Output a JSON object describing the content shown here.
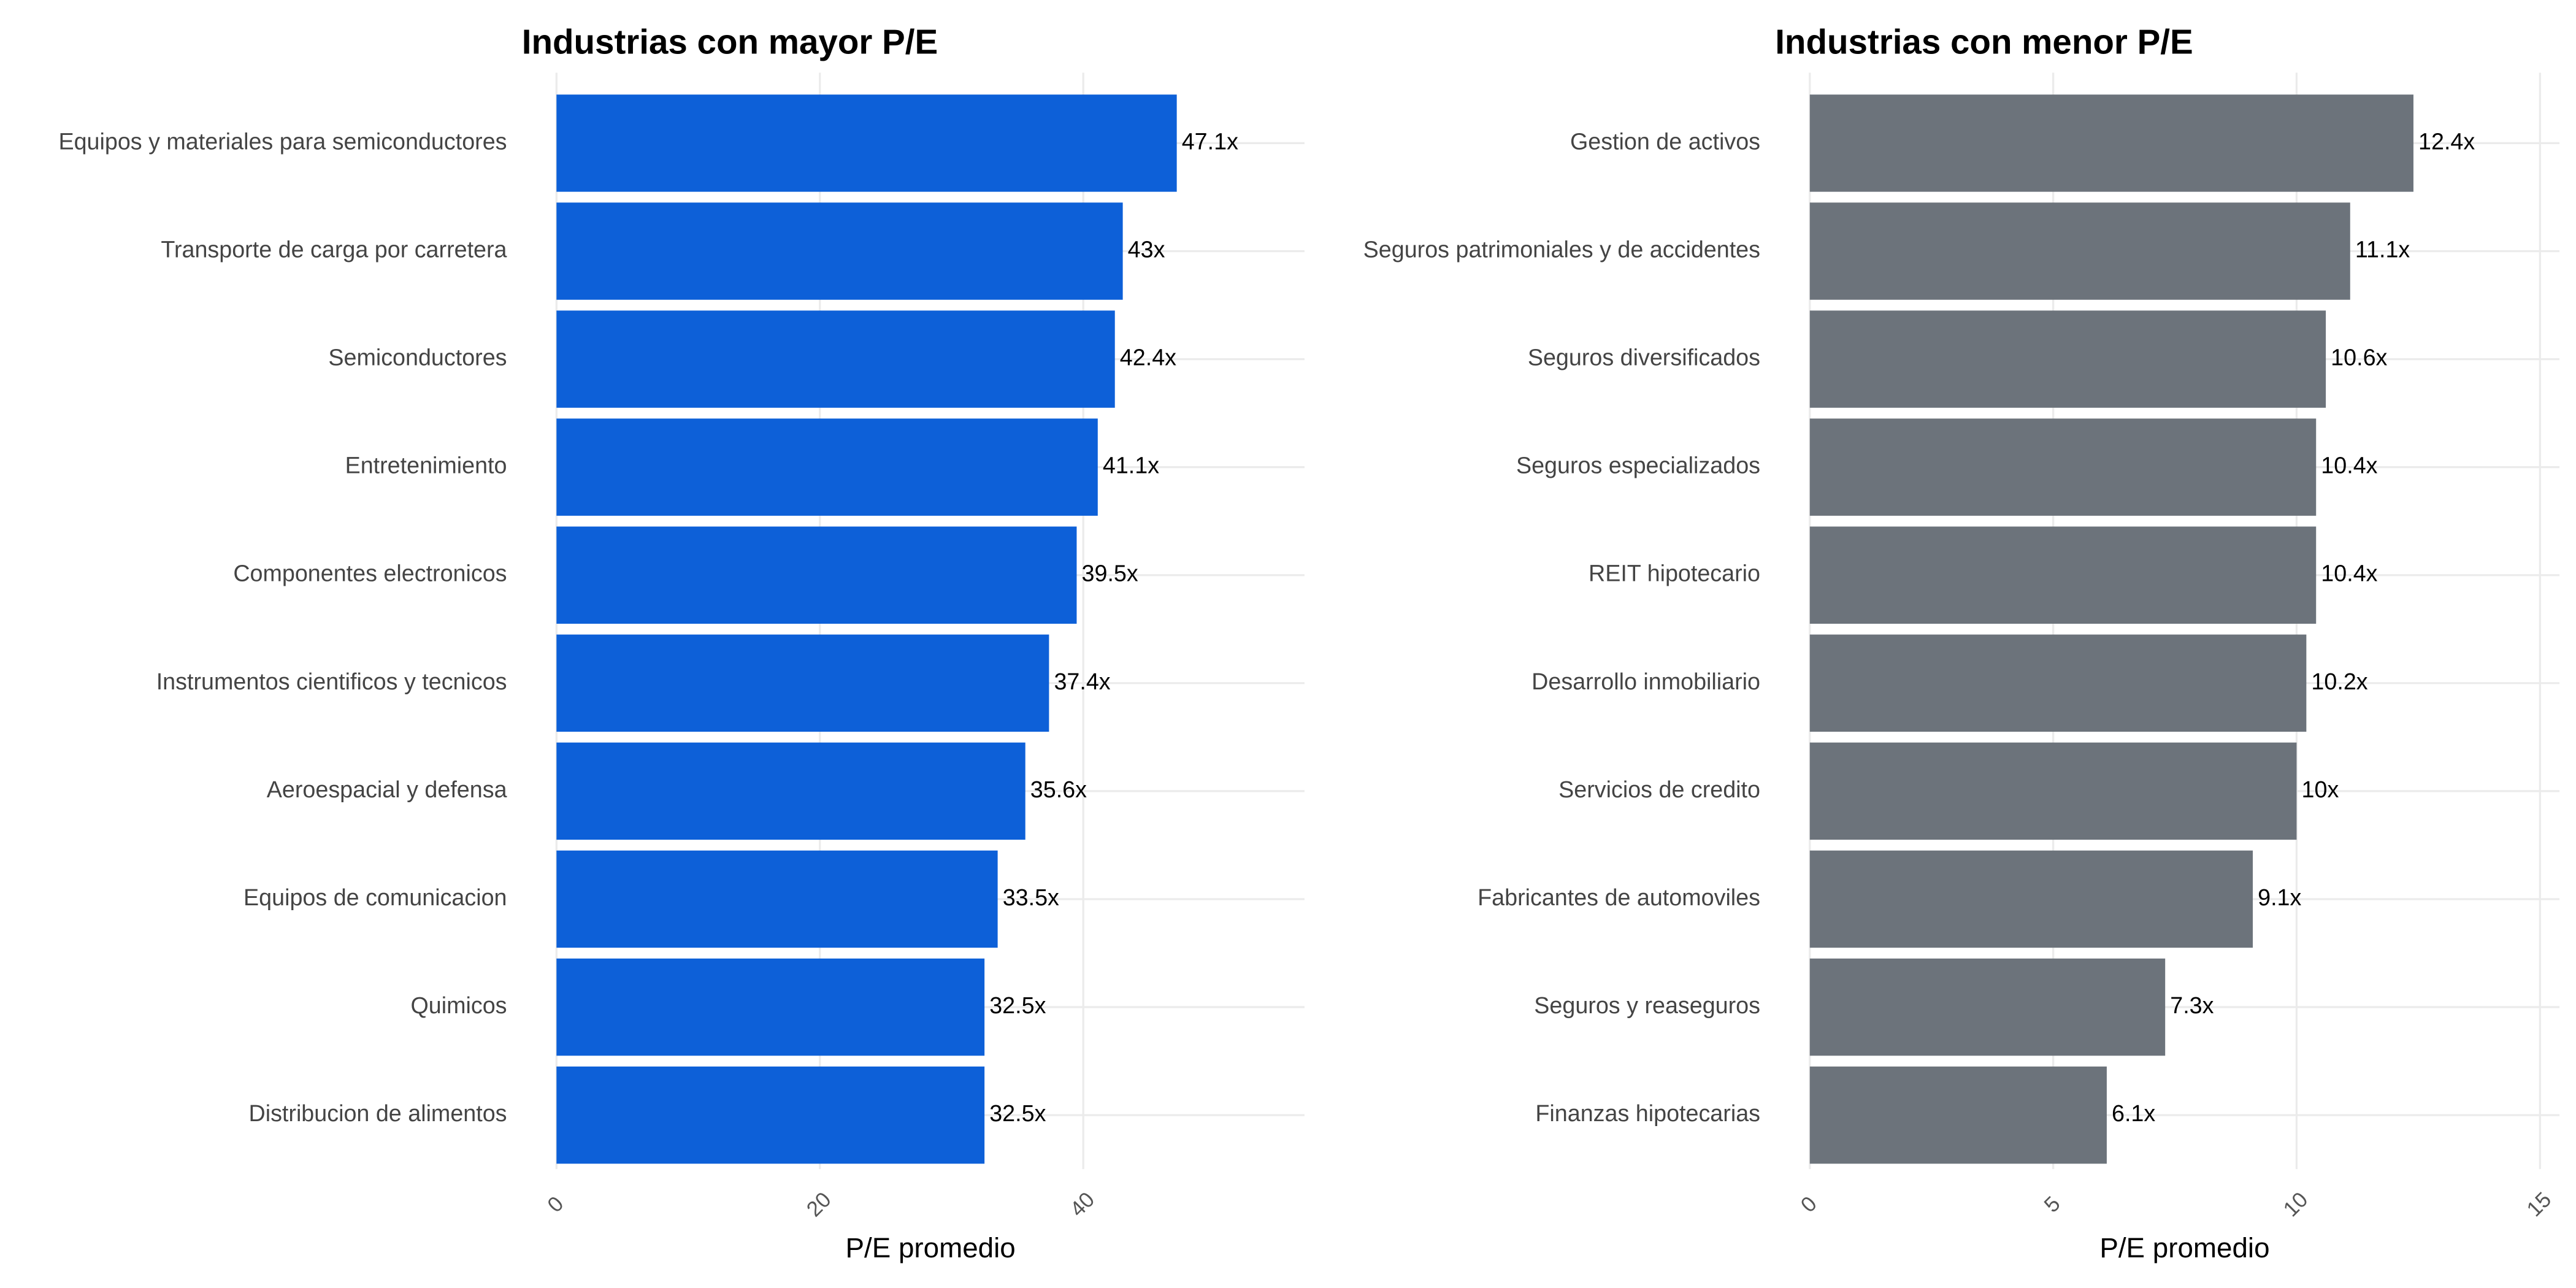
{
  "chart_data": [
    {
      "type": "bar",
      "orientation": "horizontal",
      "title": "Industrias con mayor P/E",
      "x_label": "P/E promedio",
      "categories": [
        "Equipos y materiales para semiconductores",
        "Transporte de carga por carretera",
        "Semiconductores",
        "Entretenimiento",
        "Componentes electronicos",
        "Instrumentos cientificos y tecnicos",
        "Aeroespacial y defensa",
        "Equipos de comunicacion",
        "Quimicos",
        "Distribucion de alimentos"
      ],
      "values": [
        47.1,
        43,
        42.4,
        41.1,
        39.5,
        37.4,
        35.6,
        33.5,
        32.5,
        32.5
      ],
      "value_labels": [
        "47.1x",
        "43x",
        "42.4x",
        "41.1x",
        "39.5x",
        "37.4x",
        "35.6x",
        "33.5x",
        "32.5x",
        "32.5x"
      ],
      "color": "#0d60d8",
      "xlim": [
        0,
        56.8
      ],
      "xticks": [
        0,
        20,
        40
      ],
      "grid": true
    },
    {
      "type": "bar",
      "orientation": "horizontal",
      "title": "Industrias con menor P/E",
      "x_label": "P/E promedio",
      "categories": [
        "Gestion de activos",
        "Seguros patrimoniales y de accidentes",
        "Seguros diversificados",
        "Seguros especializados",
        "REIT hipotecario",
        "Desarrollo inmobiliario",
        "Servicios de credito",
        "Fabricantes de automoviles",
        "Seguros y reaseguros",
        "Finanzas hipotecarias"
      ],
      "values": [
        12.4,
        11.1,
        10.6,
        10.4,
        10.4,
        10.2,
        10,
        9.1,
        7.3,
        6.1
      ],
      "value_labels": [
        "12.4x",
        "11.1x",
        "10.6x",
        "10.4x",
        "10.4x",
        "10.2x",
        "10x",
        "9.1x",
        "7.3x",
        "6.1x"
      ],
      "color": "#6c737b",
      "xlim": [
        0,
        15.4
      ],
      "xticks": [
        0,
        5,
        10,
        15
      ],
      "grid": true
    }
  ]
}
